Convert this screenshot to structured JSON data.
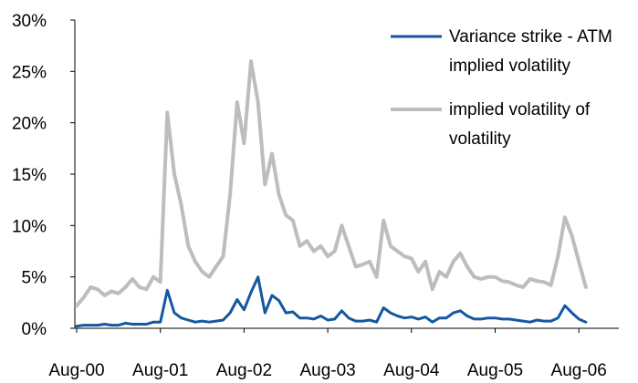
{
  "chart_data": {
    "type": "line",
    "title": "",
    "xlabel": "",
    "ylabel": "",
    "x_tick_labels": [
      "Aug-00",
      "Aug-01",
      "Aug-02",
      "Aug-03",
      "Aug-04",
      "Aug-05",
      "Aug-06"
    ],
    "y_tick_labels": [
      "0%",
      "5%",
      "10%",
      "15%",
      "20%",
      "25%",
      "30%"
    ],
    "ylim": [
      0,
      30
    ],
    "xlim": [
      "2000-08",
      "2006-09"
    ],
    "grid": false,
    "legend_position": "top-right",
    "x": [
      "2000-08",
      "2000-09",
      "2000-10",
      "2000-11",
      "2000-12",
      "2001-01",
      "2001-02",
      "2001-03",
      "2001-04",
      "2001-05",
      "2001-06",
      "2001-07",
      "2001-08",
      "2001-09",
      "2001-10",
      "2001-11",
      "2001-12",
      "2002-01",
      "2002-02",
      "2002-03",
      "2002-04",
      "2002-05",
      "2002-06",
      "2002-07",
      "2002-08",
      "2002-09",
      "2002-10",
      "2002-11",
      "2002-12",
      "2003-01",
      "2003-02",
      "2003-03",
      "2003-04",
      "2003-05",
      "2003-06",
      "2003-07",
      "2003-08",
      "2003-09",
      "2003-10",
      "2003-11",
      "2003-12",
      "2004-01",
      "2004-02",
      "2004-03",
      "2004-04",
      "2004-05",
      "2004-06",
      "2004-07",
      "2004-08",
      "2004-09",
      "2004-10",
      "2004-11",
      "2004-12",
      "2005-01",
      "2005-02",
      "2005-03",
      "2005-04",
      "2005-05",
      "2005-06",
      "2005-07",
      "2005-08",
      "2005-09",
      "2005-10",
      "2005-11",
      "2005-12",
      "2006-01",
      "2006-02",
      "2006-03",
      "2006-04",
      "2006-05",
      "2006-06",
      "2006-07",
      "2006-08",
      "2006-09"
    ],
    "series": [
      {
        "name": "Variance strike - ATM implied volatility",
        "color": "#1458a0",
        "values": [
          0.2,
          0.3,
          0.3,
          0.3,
          0.4,
          0.3,
          0.3,
          0.5,
          0.4,
          0.4,
          0.4,
          0.6,
          0.6,
          3.7,
          1.5,
          1.0,
          0.8,
          0.6,
          0.7,
          0.6,
          0.7,
          0.8,
          1.5,
          2.8,
          1.8,
          3.5,
          5.0,
          1.5,
          3.2,
          2.7,
          1.5,
          1.6,
          1.0,
          1.0,
          0.9,
          1.2,
          0.8,
          0.9,
          1.7,
          1.0,
          0.7,
          0.7,
          0.8,
          0.6,
          2.0,
          1.5,
          1.2,
          1.0,
          1.1,
          0.9,
          1.1,
          0.6,
          1.0,
          1.0,
          1.5,
          1.7,
          1.2,
          0.9,
          0.9,
          1.0,
          1.0,
          0.9,
          0.9,
          0.8,
          0.7,
          0.6,
          0.8,
          0.7,
          0.7,
          1.0,
          2.2,
          1.5,
          0.9,
          0.6
        ]
      },
      {
        "name": "implied volatility of volatility",
        "color": "#bdbdbd",
        "values": [
          2.2,
          3.0,
          4.0,
          3.8,
          3.2,
          3.6,
          3.4,
          4.0,
          4.8,
          4.0,
          3.8,
          5.0,
          4.5,
          21.0,
          15.0,
          12.0,
          8.0,
          6.5,
          5.5,
          5.0,
          6.0,
          7.0,
          13.0,
          22.0,
          18.0,
          26.0,
          22.0,
          14.0,
          17.0,
          13.0,
          11.0,
          10.5,
          8.0,
          8.5,
          7.5,
          8.0,
          7.0,
          7.5,
          10.0,
          8.0,
          6.0,
          6.2,
          6.5,
          5.0,
          10.5,
          8.0,
          7.5,
          7.0,
          6.8,
          5.5,
          6.5,
          3.8,
          5.5,
          5.0,
          6.5,
          7.3,
          6.0,
          5.0,
          4.8,
          5.0,
          5.0,
          4.6,
          4.5,
          4.2,
          4.0,
          4.8,
          4.6,
          4.5,
          4.2,
          7.0,
          10.8,
          9.0,
          6.5,
          4.0
        ]
      }
    ]
  }
}
